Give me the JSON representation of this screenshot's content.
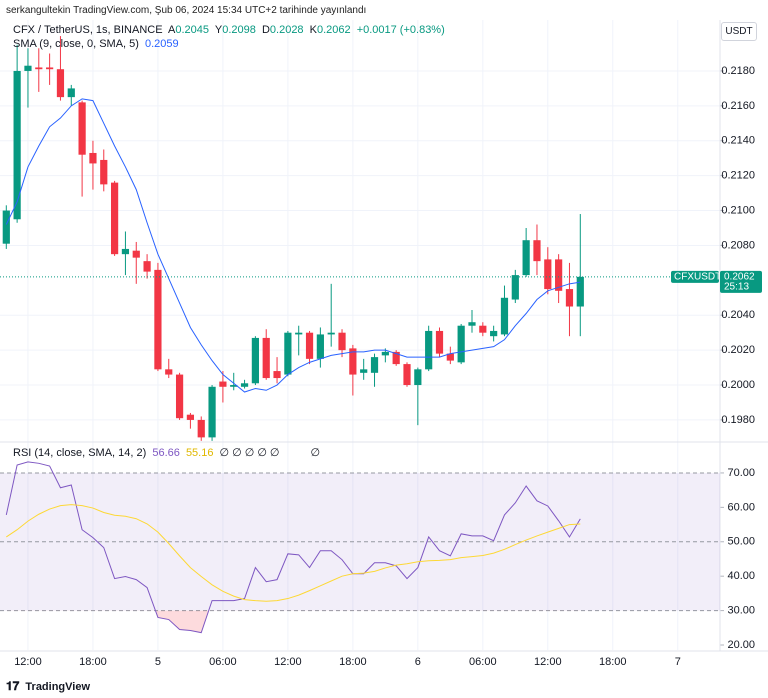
{
  "header": {
    "published": "serkangultekin TradingView.com, Şub 06, 2024 15:34 UTC+2 tarihinde yayınlandı"
  },
  "footer": {
    "brand": "TradingView"
  },
  "chart_data": [
    {
      "type": "candlestick",
      "title": "CFX / TetherUS, 1s, BINANCE",
      "currency_button": "USDT",
      "ohlc_legend": {
        "open_label": "A",
        "open": "0.2045",
        "high_label": "Y",
        "high": "0.2098",
        "low_label": "D",
        "low": "0.2028",
        "close_label": "K",
        "close": "0.2062",
        "change": "+0.0017 (+0.83%)"
      },
      "last_price": {
        "symbol": "CFXUSDT",
        "price": "0.2062",
        "countdown": "25:13"
      },
      "up_color": "#089981",
      "down_color": "#f23645",
      "categories": [
        null,
        null,
        "12:00",
        null,
        null,
        null,
        null,
        null,
        "18:00",
        null,
        null,
        null,
        null,
        null,
        "5",
        null,
        null,
        null,
        null,
        null,
        "06:00",
        null,
        null,
        null,
        null,
        null,
        "12:00",
        null,
        null,
        null,
        null,
        null,
        "18:00",
        null,
        null,
        null,
        null,
        null,
        "6",
        null,
        null,
        null,
        null,
        null,
        "06:00",
        null,
        null,
        null,
        null,
        null,
        "12:00",
        null,
        null,
        null,
        null,
        null,
        "18:00",
        null,
        null,
        null,
        null,
        null,
        "7",
        null,
        null,
        null
      ],
      "open": [
        0.2081,
        0.2095,
        0.218,
        0.2182,
        0.2182,
        0.2181,
        0.2165,
        0.2162,
        0.2133,
        0.2129,
        0.2116,
        0.2075,
        0.2077,
        0.2071,
        0.2066,
        0.2009,
        0.2006,
        0.1983,
        0.198,
        0.197,
        0.2002,
        0.1999,
        0.1999,
        0.2001,
        0.2027,
        0.2008,
        0.2006,
        0.2029,
        0.203,
        0.2015,
        0.2029,
        0.203,
        0.2021,
        0.2007,
        0.2007,
        0.2017,
        0.2019,
        0.2012,
        0.2,
        0.2009,
        0.2031,
        0.2018,
        0.2013,
        0.2034,
        0.2034,
        0.2028,
        0.2029,
        0.2049,
        0.2063,
        0.2083,
        0.2072,
        0.2072,
        0.2055,
        0.2045,
        null,
        null,
        null,
        null,
        null,
        null,
        null,
        null,
        null,
        null,
        null,
        null
      ],
      "high": [
        0.2103,
        0.2195,
        0.2193,
        0.2193,
        0.219,
        0.22,
        0.2172,
        0.2163,
        0.214,
        0.2135,
        0.2117,
        0.2088,
        0.2082,
        0.2075,
        0.207,
        0.2015,
        0.2007,
        0.1984,
        0.1982,
        0.2,
        0.2008,
        0.2007,
        0.2003,
        0.2028,
        0.2032,
        0.2016,
        0.2031,
        0.2034,
        0.2031,
        0.2033,
        0.2058,
        0.2032,
        0.2023,
        0.2015,
        0.2018,
        0.2021,
        0.202,
        0.2013,
        0.201,
        0.2034,
        0.2033,
        0.2022,
        0.2035,
        0.2043,
        0.2036,
        0.2034,
        0.2057,
        0.2066,
        0.209,
        0.2092,
        0.2079,
        0.2075,
        0.207,
        0.2098,
        null,
        null,
        null,
        null,
        null,
        null,
        null,
        null,
        null,
        null,
        null,
        null
      ],
      "low": [
        0.2078,
        0.2093,
        0.2159,
        0.2168,
        0.2172,
        0.2163,
        0.216,
        0.2108,
        0.2112,
        0.2111,
        0.2074,
        0.2063,
        0.2058,
        0.2061,
        0.2008,
        0.2004,
        0.198,
        0.1975,
        0.1968,
        0.1968,
        0.199,
        0.1997,
        0.1998,
        0.2,
        0.2003,
        0.2001,
        0.2005,
        0.2017,
        0.2012,
        0.201,
        0.2022,
        0.2016,
        0.1994,
        0.2003,
        0.1999,
        0.2013,
        0.2011,
        0.1999,
        0.1977,
        0.2008,
        0.2016,
        0.2012,
        0.2012,
        0.203,
        0.2028,
        0.2025,
        0.2028,
        0.2047,
        0.2062,
        0.2063,
        0.2052,
        0.2047,
        0.2028,
        0.2028,
        null,
        null,
        null,
        null,
        null,
        null,
        null,
        null,
        null,
        null,
        null,
        null
      ],
      "close": [
        0.21,
        0.218,
        0.2183,
        0.2181,
        0.2181,
        0.2165,
        0.217,
        0.2132,
        0.2127,
        0.2115,
        0.2075,
        0.2078,
        0.2073,
        0.2065,
        0.2009,
        0.2006,
        0.1981,
        0.198,
        0.197,
        0.1999,
        0.1999,
        0.2,
        0.2001,
        0.2027,
        0.2004,
        0.2004,
        0.203,
        0.203,
        0.2015,
        0.2029,
        0.203,
        0.202,
        0.2006,
        0.2009,
        0.2016,
        0.2019,
        0.2012,
        0.2,
        0.2009,
        0.2031,
        0.2018,
        0.2014,
        0.2034,
        0.2036,
        0.203,
        0.2031,
        0.205,
        0.2063,
        0.2083,
        0.2071,
        0.2055,
        0.2054,
        0.2045,
        0.2062,
        null,
        null,
        null,
        null,
        null,
        null,
        null,
        null,
        null,
        null,
        null,
        null
      ],
      "overlays": [
        {
          "name": "SMA (9, close, 0, SMA, 5)",
          "color": "#2962ff",
          "value_label": "0.2059",
          "values": [
            0.2092,
            0.2105,
            0.2125,
            0.2137,
            0.2148,
            0.2153,
            0.216,
            0.2164,
            0.2163,
            0.215,
            0.2137,
            0.2125,
            0.2112,
            0.2093,
            0.2075,
            0.2061,
            0.2047,
            0.2033,
            0.2023,
            0.2014,
            0.2006,
            0.2001,
            0.1996,
            0.1998,
            0.1997,
            0.2,
            0.2006,
            0.201,
            0.2013,
            0.2015,
            0.2017,
            0.2018,
            0.2019,
            0.2019,
            0.202,
            0.202,
            0.2018,
            0.2016,
            0.2016,
            0.2016,
            0.2016,
            0.2018,
            0.2019,
            0.202,
            0.2021,
            0.2022,
            0.2026,
            0.2034,
            0.2041,
            0.2049,
            0.2054,
            0.2056,
            0.2058,
            0.2059,
            null,
            null,
            null,
            null,
            null,
            null,
            null,
            null,
            null,
            null,
            null,
            null
          ]
        }
      ],
      "ylim": [
        0.19685,
        0.22092
      ],
      "yticks": [
        {
          "value": 0.218,
          "label": "0.2180"
        },
        {
          "value": 0.216,
          "label": "0.2160"
        },
        {
          "value": 0.214,
          "label": "0.2140"
        },
        {
          "value": 0.212,
          "label": "0.2120"
        },
        {
          "value": 0.21,
          "label": "0.2100"
        },
        {
          "value": 0.208,
          "label": "0.2080"
        },
        {
          "value": 0.204,
          "label": "0.2040"
        },
        {
          "value": 0.202,
          "label": "0.2020"
        },
        {
          "value": 0.2,
          "label": "0.2000"
        },
        {
          "value": 0.198,
          "label": "0.1980"
        }
      ],
      "grid": true
    },
    {
      "type": "line",
      "title": "RSI (14, close, SMA, 14, 2)",
      "status_icons": [
        "∅",
        "∅",
        "∅",
        "∅",
        "∅",
        "∅"
      ],
      "band": {
        "upper": 70,
        "middle": 50,
        "lower": 30,
        "color": "#7e57c2"
      },
      "oversold_color": "#f23645",
      "series": [
        {
          "color": "#7e57c2",
          "value_label": "56.66",
          "values": [
            57.8,
            72.3,
            73.2,
            72.8,
            72.0,
            65.7,
            66.5,
            53.5,
            51.2,
            48.3,
            39.3,
            39.9,
            39.0,
            36.7,
            28.0,
            27.4,
            24.5,
            24.2,
            23.6,
            32.9,
            32.9,
            32.9,
            33.5,
            42.5,
            38.4,
            39.0,
            46.5,
            46.2,
            42.5,
            47.4,
            47.4,
            44.8,
            40.7,
            40.7,
            43.9,
            43.9,
            43.0,
            39.3,
            42.5,
            51.4,
            47.4,
            45.9,
            52.3,
            51.7,
            51.7,
            50.3,
            57.8,
            61.3,
            66.2,
            61.9,
            60.4,
            56.1,
            51.4,
            56.66,
            null,
            null,
            null,
            null,
            null,
            null,
            null,
            null,
            null,
            null,
            null,
            null
          ]
        },
        {
          "color": "#fdd835",
          "value_label": "55.16",
          "values": [
            51.4,
            53.5,
            56.0,
            58.0,
            59.5,
            60.5,
            60.8,
            60.5,
            59.8,
            58.5,
            57.7,
            57.4,
            56.7,
            55.2,
            52.8,
            49.5,
            45.9,
            42.5,
            39.9,
            37.5,
            35.6,
            34.2,
            33.2,
            32.9,
            32.7,
            32.9,
            33.5,
            34.5,
            35.8,
            37.2,
            38.6,
            40.0,
            40.7,
            40.9,
            41.4,
            42.4,
            43.2,
            43.6,
            44.2,
            44.5,
            44.6,
            44.8,
            45.4,
            45.7,
            46.0,
            46.7,
            47.8,
            49.2,
            50.5,
            51.7,
            52.8,
            53.9,
            55.0,
            55.16,
            null,
            null,
            null,
            null,
            null,
            null,
            null,
            null,
            null,
            null,
            null,
            null
          ]
        }
      ],
      "ylim": [
        18.55,
        78.12
      ],
      "yticks": [
        {
          "value": 70,
          "label": "70.00"
        },
        {
          "value": 60,
          "label": "60.00"
        },
        {
          "value": 50,
          "label": "50.00"
        },
        {
          "value": 40,
          "label": "40.00"
        },
        {
          "value": 30,
          "label": "30.00"
        },
        {
          "value": 20,
          "label": "20.00"
        }
      ]
    }
  ]
}
